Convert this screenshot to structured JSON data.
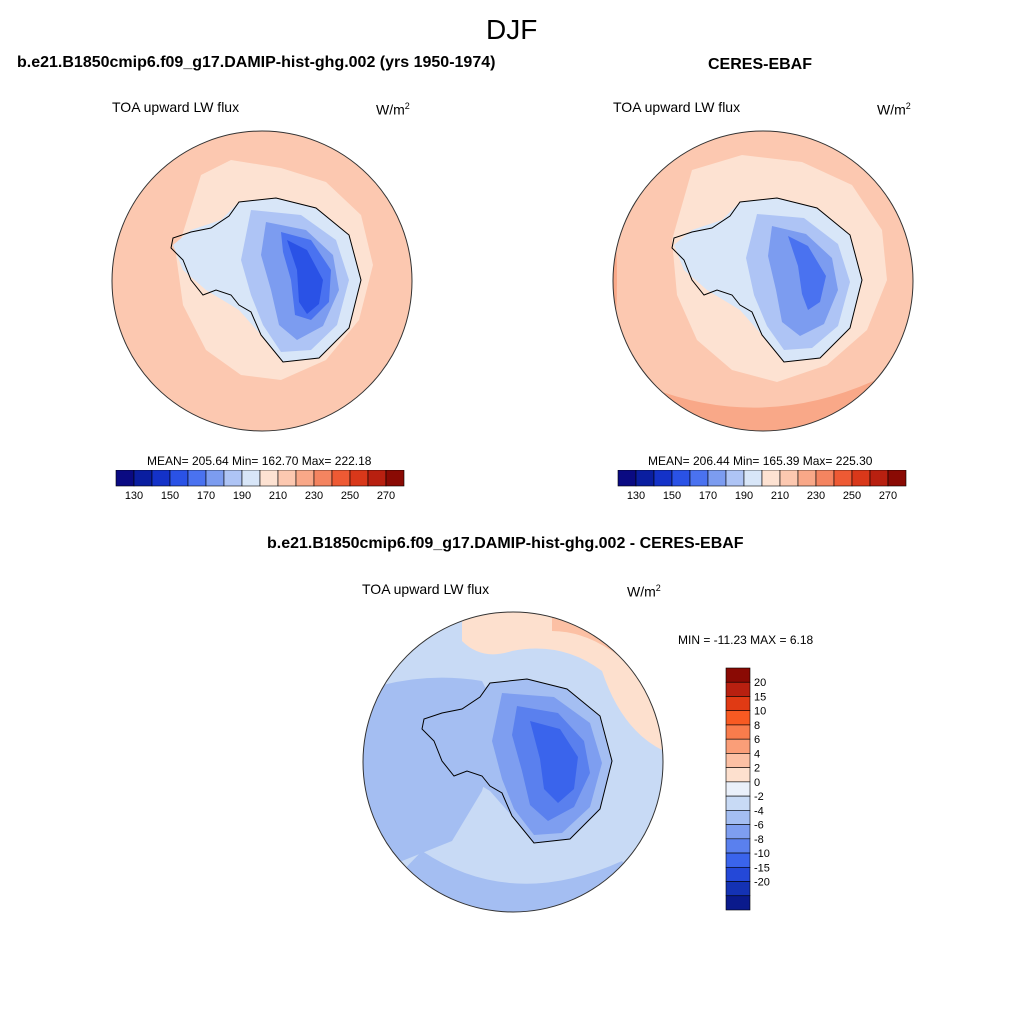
{
  "title": "DJF",
  "panels": [
    {
      "id": "model",
      "title": "b.e21.B1850cmip6.f09_g17.DAMIP-hist-ghg.002 (yrs 1950-1974)",
      "variable": "TOA upward LW flux",
      "units_base": "W/m",
      "units_exp": "2",
      "stats": "MEAN= 205.64  Min= 162.70  Max= 222.18"
    },
    {
      "id": "obs",
      "title": "CERES-EBAF",
      "variable": "TOA upward LW flux",
      "units_base": "W/m",
      "units_exp": "2",
      "stats": "MEAN= 206.44  Min= 165.39  Max= 225.30"
    },
    {
      "id": "diff",
      "title": "b.e21.B1850cmip6.f09_g17.DAMIP-hist-ghg.002 - CERES-EBAF",
      "variable": "TOA upward LW flux",
      "units_base": "W/m",
      "units_exp": "2",
      "stats": "MIN = -11.23 MAX =   6.18"
    }
  ],
  "colorbar_abs": {
    "colors": [
      "#0a0a82",
      "#0a1ea0",
      "#1432c8",
      "#2a52e6",
      "#4a72f0",
      "#7c9cf0",
      "#aec4f5",
      "#d8e6f8",
      "#fde2d2",
      "#fcc8b0",
      "#f9a888",
      "#f48460",
      "#ee5a34",
      "#d9381a",
      "#b82010",
      "#8a0a04"
    ],
    "tick_labels": [
      "130",
      "150",
      "170",
      "190",
      "210",
      "230",
      "250",
      "270"
    ]
  },
  "colorbar_diff": {
    "colors": [
      "#8a0a04",
      "#b82010",
      "#e03a14",
      "#f85a22",
      "#f97c4c",
      "#fa9e78",
      "#fcc0a4",
      "#fde0ce",
      "#eaf0fa",
      "#c8daf5",
      "#a4bef2",
      "#7e9ef0",
      "#5a80ee",
      "#3a64ec",
      "#2448d8",
      "#1432b4",
      "#0a1a8c"
    ],
    "tick_labels": [
      "20",
      "15",
      "10",
      "8",
      "6",
      "4",
      "2",
      "0",
      "-2",
      "-4",
      "-6",
      "-8",
      "-10",
      "-15",
      "-20"
    ]
  }
}
